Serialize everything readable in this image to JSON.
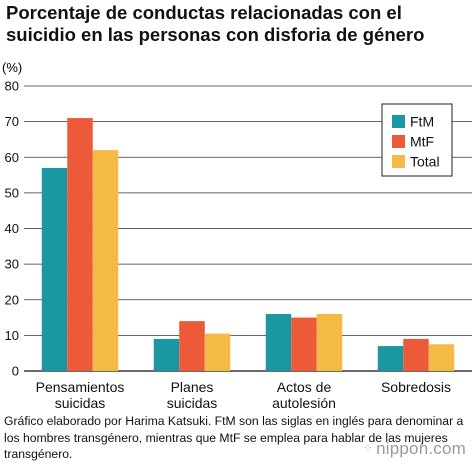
{
  "chart_data": {
    "type": "bar",
    "title": "Porcentaje de conductas relacionadas con el suicidio en las personas con disforia de género",
    "unit_label": "(%)",
    "categories": [
      [
        "Pensamientos",
        "suicidas"
      ],
      [
        "Planes",
        "suicidas"
      ],
      [
        "Actos de",
        "autolesión"
      ],
      [
        "Sobredosis"
      ]
    ],
    "series": [
      {
        "name": "FtM",
        "color": "#1a97a3",
        "values": [
          57,
          9,
          16,
          7
        ]
      },
      {
        "name": "MtF",
        "color": "#ec5a3a",
        "values": [
          71,
          14,
          15,
          9
        ]
      },
      {
        "name": "Total",
        "color": "#f3bb43",
        "values": [
          62,
          10.5,
          16,
          7.5
        ]
      }
    ],
    "ylim": [
      0,
      80
    ],
    "yticks": [
      0,
      10,
      20,
      30,
      40,
      50,
      60,
      70,
      80
    ],
    "grid": true,
    "legend_position": "top-right"
  },
  "caption": "Gráfico elaborado por Harima Katsuki. FtM son las siglas en inglés para denominar a los hombres transgénero, mientras que MtF se emplea para hablar de las mujeres transgénero.",
  "logo": {
    "dots": "⁘",
    "text": "nippon.com"
  }
}
